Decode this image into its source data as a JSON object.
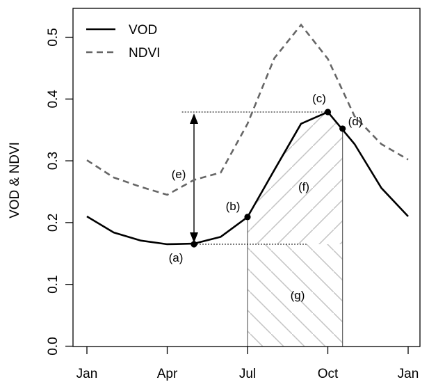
{
  "chart_data": {
    "type": "line",
    "ylabel": "VOD & NDVI",
    "xlabel": "",
    "title": "",
    "ylim": [
      0,
      0.55
    ],
    "x_ticks": [
      {
        "label": "Jan",
        "month": 0
      },
      {
        "label": "Apr",
        "month": 3
      },
      {
        "label": "Jul",
        "month": 6
      },
      {
        "label": "Oct",
        "month": 9
      },
      {
        "label": "Jan",
        "month": 12
      }
    ],
    "y_ticks": [
      {
        "label": "0.0",
        "value": 0.0
      },
      {
        "label": "0.1",
        "value": 0.1
      },
      {
        "label": "0.2",
        "value": 0.2
      },
      {
        "label": "0.3",
        "value": 0.3
      },
      {
        "label": "0.4",
        "value": 0.4
      },
      {
        "label": "0.5",
        "value": 0.5
      }
    ],
    "legend_position": "top-left",
    "series": [
      {
        "name": "VOD",
        "style": "solid",
        "color": "#000000",
        "x": [
          0,
          1,
          2,
          3,
          4,
          5,
          6,
          7,
          8,
          9,
          10,
          11,
          12
        ],
        "values": [
          0.21,
          0.184,
          0.171,
          0.165,
          0.166,
          0.177,
          0.209,
          0.285,
          0.36,
          0.379,
          0.327,
          0.256,
          0.21
        ]
      },
      {
        "name": "NDVI",
        "style": "dashed",
        "color": "#666666",
        "x": [
          0,
          1,
          2,
          3,
          4,
          5,
          6,
          7,
          8,
          9,
          10,
          11,
          12
        ],
        "values": [
          0.301,
          0.273,
          0.258,
          0.245,
          0.269,
          0.281,
          0.36,
          0.466,
          0.52,
          0.465,
          0.372,
          0.327,
          0.302
        ]
      }
    ],
    "key_points": [
      {
        "label": "(a)",
        "x": 4.0,
        "y": 0.165
      },
      {
        "label": "(b)",
        "x": 6.0,
        "y": 0.209
      },
      {
        "label": "(c)",
        "x": 9.0,
        "y": 0.379
      },
      {
        "label": "(d)",
        "x": 9.55,
        "y": 0.352
      }
    ],
    "annotations": [
      {
        "label": "(e)",
        "meaning": "amplitude"
      },
      {
        "label": "(f)",
        "meaning": "area above base"
      },
      {
        "label": "(g)",
        "meaning": "area below base"
      }
    ]
  }
}
